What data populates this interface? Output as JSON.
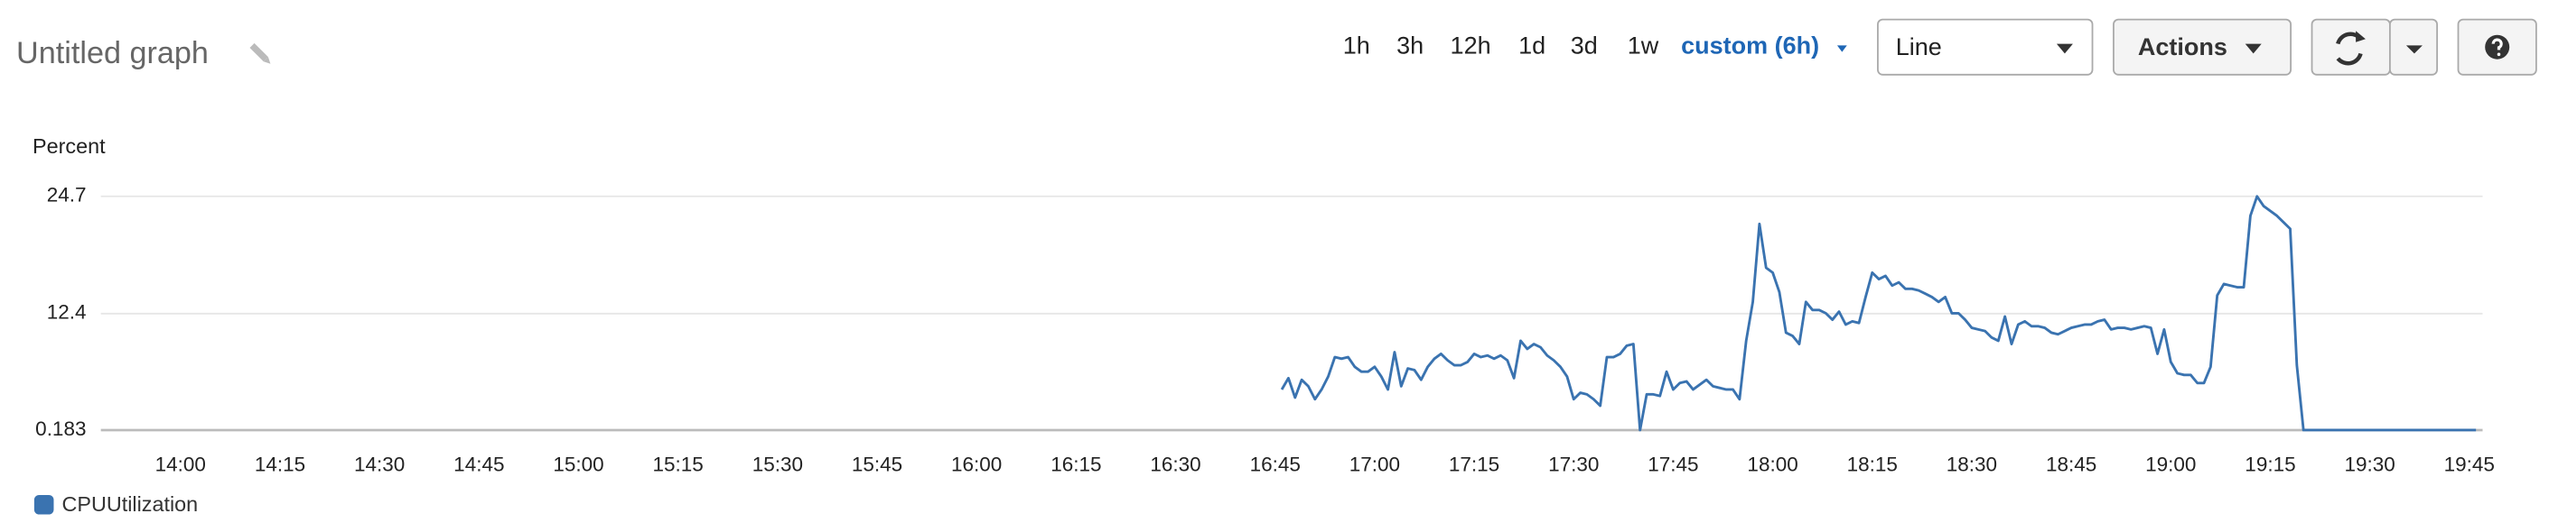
{
  "toolbar": {
    "title": "Untitled graph",
    "time_ranges": [
      "1h",
      "3h",
      "12h",
      "1d",
      "3d",
      "1w"
    ],
    "custom_range": "custom (6h)",
    "view": "Line",
    "actions": "Actions"
  },
  "chart_data": {
    "type": "line",
    "y_label": "Percent",
    "x": [
      "16:46",
      "16:47",
      "16:48",
      "16:49",
      "16:50",
      "16:51",
      "16:52",
      "16:53",
      "16:54",
      "16:55",
      "16:56",
      "16:57",
      "16:58",
      "16:59",
      "17:00",
      "17:01",
      "17:02",
      "17:03",
      "17:04",
      "17:05",
      "17:06",
      "17:07",
      "17:08",
      "17:09",
      "17:10",
      "17:11",
      "17:12",
      "17:13",
      "17:14",
      "17:15",
      "17:16",
      "17:17",
      "17:18",
      "17:19",
      "17:20",
      "17:21",
      "17:22",
      "17:23",
      "17:24",
      "17:25",
      "17:26",
      "17:27",
      "17:28",
      "17:29",
      "17:30",
      "17:31",
      "17:32",
      "17:33",
      "17:34",
      "17:35",
      "17:36",
      "17:37",
      "17:38",
      "17:39",
      "17:40",
      "17:41",
      "17:42",
      "17:43",
      "17:44",
      "17:45",
      "17:46",
      "17:47",
      "17:48",
      "17:49",
      "17:50",
      "17:51",
      "17:52",
      "17:53",
      "17:54",
      "17:55",
      "17:56",
      "17:57",
      "17:58",
      "17:59",
      "18:00",
      "18:01",
      "18:02",
      "18:03",
      "18:04",
      "18:05",
      "18:06",
      "18:07",
      "18:08",
      "18:09",
      "18:10",
      "18:11",
      "18:12",
      "18:13",
      "18:14",
      "18:15",
      "18:16",
      "18:17",
      "18:18",
      "18:19",
      "18:20",
      "18:21",
      "18:22",
      "18:23",
      "18:24",
      "18:25",
      "18:26",
      "18:27",
      "18:28",
      "18:29",
      "18:30",
      "18:31",
      "18:32",
      "18:33",
      "18:34",
      "18:35",
      "18:36",
      "18:37",
      "18:38",
      "18:39",
      "18:40",
      "18:41",
      "18:42",
      "18:43",
      "18:44",
      "18:45",
      "18:46",
      "18:47",
      "18:48",
      "18:49",
      "18:50",
      "18:51",
      "18:52",
      "18:53",
      "18:54",
      "18:55",
      "18:56",
      "18:57",
      "18:58",
      "18:59",
      "19:00",
      "19:01",
      "19:02",
      "19:03",
      "19:04",
      "19:05",
      "19:06",
      "19:07",
      "19:08",
      "19:09",
      "19:10",
      "19:11",
      "19:12",
      "19:13",
      "19:14",
      "19:15",
      "19:16",
      "19:17",
      "19:18",
      "19:19",
      "19:20",
      "19:25",
      "19:30",
      "19:35",
      "19:40",
      "19:46"
    ],
    "series": [
      {
        "name": "CPUUtilization",
        "color": "#3a73b0",
        "values": [
          4.44,
          5.63,
          3.59,
          5.46,
          4.78,
          3.42,
          4.44,
          5.8,
          7.84,
          7.67,
          7.84,
          6.82,
          6.31,
          6.31,
          6.82,
          5.8,
          4.44,
          8.36,
          4.78,
          6.65,
          6.48,
          5.46,
          6.82,
          7.67,
          8.18,
          7.5,
          6.99,
          6.99,
          7.33,
          8.18,
          7.84,
          8.01,
          7.67,
          8.01,
          7.5,
          5.63,
          9.55,
          8.7,
          9.21,
          8.87,
          8.01,
          7.5,
          6.82,
          5.8,
          3.42,
          4.1,
          3.93,
          3.42,
          2.74,
          7.84,
          7.84,
          8.18,
          9.04,
          9.21,
          0.183,
          3.93,
          3.93,
          3.76,
          6.31,
          4.44,
          5.12,
          5.29,
          4.44,
          4.95,
          5.46,
          4.78,
          4.61,
          4.44,
          4.44,
          3.42,
          9.55,
          13.63,
          21.81,
          17.21,
          16.7,
          14.66,
          10.4,
          10.06,
          9.21,
          13.63,
          12.78,
          12.78,
          12.44,
          11.76,
          12.61,
          11.25,
          11.59,
          11.42,
          14.14,
          16.7,
          16.02,
          16.36,
          15.34,
          15.68,
          15.0,
          15.0,
          14.83,
          14.49,
          14.14,
          13.63,
          14.14,
          12.44,
          12.44,
          11.76,
          10.91,
          10.74,
          10.57,
          9.89,
          9.55,
          12.1,
          9.21,
          11.25,
          11.59,
          11.08,
          11.08,
          10.91,
          10.4,
          10.23,
          10.57,
          10.91,
          11.08,
          11.25,
          11.25,
          11.59,
          11.76,
          10.74,
          10.91,
          10.91,
          10.74,
          10.91,
          11.08,
          10.91,
          8.18,
          10.74,
          7.33,
          6.14,
          5.97,
          5.97,
          5.12,
          5.12,
          6.82,
          14.31,
          15.51,
          15.34,
          15.17,
          15.17,
          22.66,
          24.7,
          23.68,
          23.17,
          22.66,
          21.98,
          21.3,
          6.99,
          0.183,
          0.183,
          0.183,
          0.183,
          0.183,
          0.183
        ]
      }
    ],
    "xlim": [
      "13:48",
      "19:47"
    ],
    "xticks": [
      "14:00",
      "14:15",
      "14:30",
      "14:45",
      "15:00",
      "15:15",
      "15:30",
      "15:45",
      "16:00",
      "16:15",
      "16:30",
      "16:45",
      "17:00",
      "17:15",
      "17:30",
      "17:45",
      "18:00",
      "18:15",
      "18:30",
      "18:45",
      "19:00",
      "19:15",
      "19:30",
      "19:45"
    ],
    "ylim": [
      0.183,
      24.7
    ],
    "yticks": [
      0.183,
      12.4,
      24.7
    ],
    "grid": true
  }
}
